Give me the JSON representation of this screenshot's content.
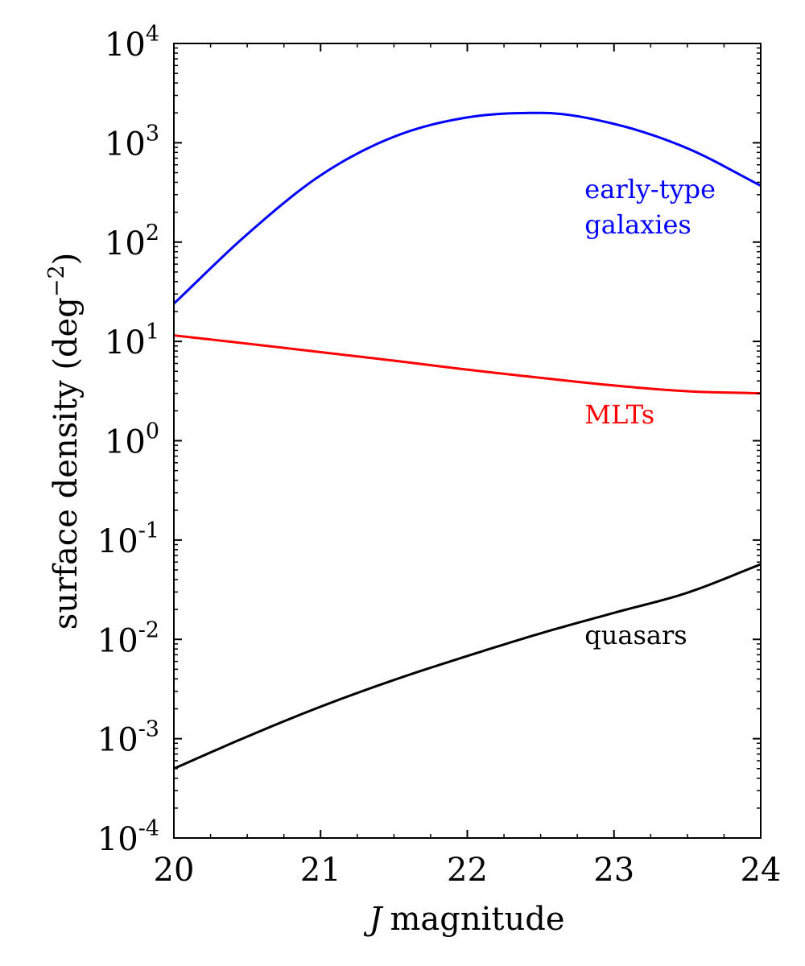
{
  "chart_data": {
    "type": "line",
    "xlabel_italic": "J",
    "xlabel_rest": "magnitude",
    "ylabel": "surface density (deg",
    "ylabel_exp": "−2",
    "ylabel_close": ")",
    "xlim": [
      20,
      24
    ],
    "ylim_log10": [
      -4,
      4
    ],
    "yscale": "log",
    "x_ticks": [
      20,
      21,
      22,
      23,
      24
    ],
    "x_tick_labels": [
      "20",
      "21",
      "22",
      "23",
      "24"
    ],
    "y_ticks_log10": [
      -4,
      -3,
      -2,
      -1,
      0,
      1,
      2,
      3,
      4
    ],
    "y_tick_base": "10",
    "y_tick_exponents": [
      "-4",
      "-3",
      "-2",
      "-1",
      "0",
      "1",
      "2",
      "3",
      "4"
    ],
    "x": [
      20.0,
      20.5,
      21.0,
      21.5,
      22.0,
      22.5,
      23.0,
      23.5,
      24.0
    ],
    "series": [
      {
        "name": "early-type galaxies",
        "color": "#0000ff",
        "values": [
          24,
          120,
          470,
          1150,
          1800,
          2000,
          1550,
          880,
          370
        ]
      },
      {
        "name": "MLTs",
        "color": "#ff0000",
        "values": [
          11.5,
          9.5,
          7.8,
          6.4,
          5.2,
          4.3,
          3.6,
          3.15,
          3.0
        ]
      },
      {
        "name": "quasars",
        "color": "#000000",
        "values": [
          0.0005,
          0.00105,
          0.0021,
          0.0039,
          0.0068,
          0.0115,
          0.0185,
          0.0295,
          0.057
        ]
      }
    ],
    "annotations": [
      {
        "lines": [
          "early-type",
          "galaxies"
        ],
        "color": "#0000ff",
        "x": 22.8,
        "y": 230
      },
      {
        "lines": [
          "MLTs"
        ],
        "color": "#ff0000",
        "x": 22.8,
        "y": 1.5
      },
      {
        "lines": [
          "quasars"
        ],
        "color": "#000000",
        "x": 22.8,
        "y": 0.009
      }
    ],
    "legend": "none",
    "grid": false
  }
}
